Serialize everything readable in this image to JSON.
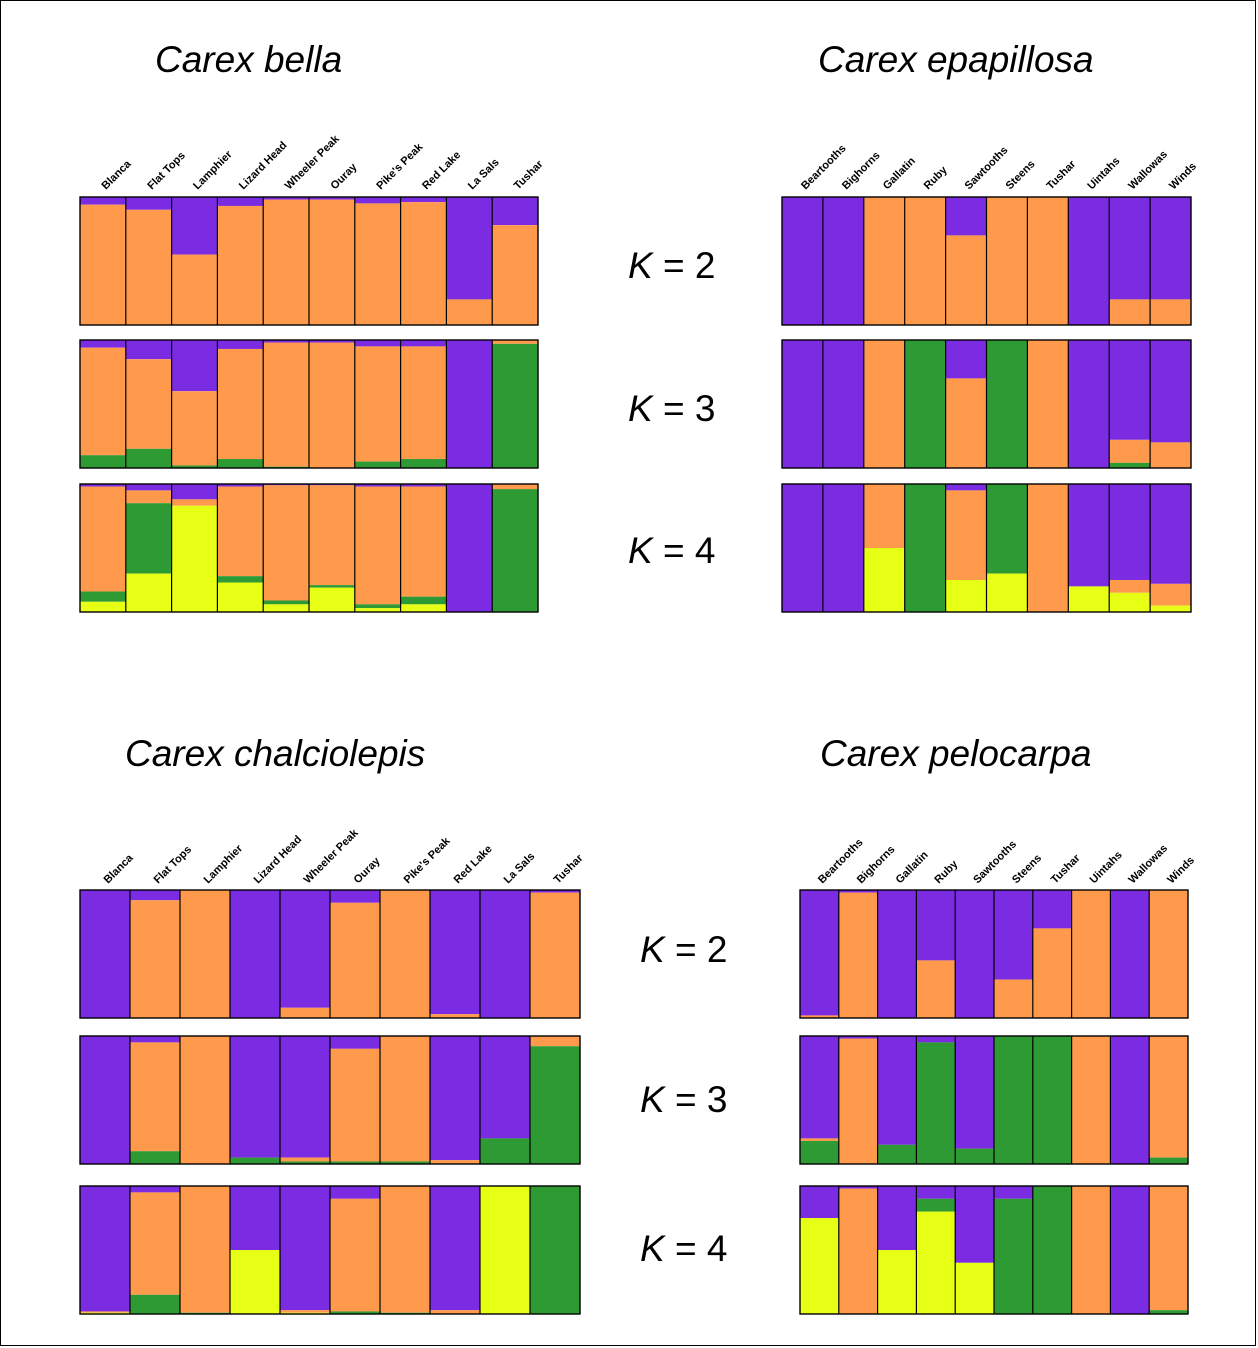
{
  "colors": {
    "purple": "#7B2BE2",
    "orange": "#FF9A4D",
    "green": "#2E9A33",
    "yellow": "#E6FF14",
    "outline": "#000000"
  },
  "k_values": [
    "2",
    "3",
    "4"
  ],
  "chart_data": [
    {
      "type": "bar",
      "title": "Carex bella",
      "stacked": true,
      "populations": [
        "Blanca",
        "Flat Tops",
        "Lamphier",
        "Lizard Head",
        "Wheeler Peak",
        "Ouray",
        "Pike's Peak",
        "Red Lake",
        "La Sals",
        "Tushar"
      ],
      "panels": [
        {
          "k": "K = 2",
          "series": [
            {
              "color": "purple",
              "values": [
                0.06,
                0.1,
                0.45,
                0.07,
                0.02,
                0.02,
                0.05,
                0.04,
                0.8,
                0.22
              ]
            },
            {
              "color": "orange",
              "values": [
                0.94,
                0.9,
                0.55,
                0.93,
                0.98,
                0.98,
                0.95,
                0.96,
                0.2,
                0.78
              ]
            }
          ]
        },
        {
          "k": "K = 3",
          "series": [
            {
              "color": "purple",
              "values": [
                0.06,
                0.15,
                0.4,
                0.07,
                0.02,
                0.02,
                0.05,
                0.05,
                1.0,
                0.0
              ]
            },
            {
              "color": "orange",
              "values": [
                0.84,
                0.7,
                0.58,
                0.86,
                0.97,
                0.98,
                0.9,
                0.88,
                0.0,
                0.03
              ]
            },
            {
              "color": "green",
              "values": [
                0.1,
                0.15,
                0.02,
                0.07,
                0.01,
                0.0,
                0.05,
                0.07,
                0.0,
                0.97
              ]
            }
          ]
        },
        {
          "k": "K = 4",
          "series": [
            {
              "color": "purple",
              "values": [
                0.02,
                0.05,
                0.12,
                0.02,
                0.01,
                0.01,
                0.02,
                0.02,
                1.0,
                0.0
              ]
            },
            {
              "color": "orange",
              "values": [
                0.82,
                0.1,
                0.05,
                0.7,
                0.9,
                0.78,
                0.92,
                0.86,
                0.0,
                0.04
              ]
            },
            {
              "color": "green",
              "values": [
                0.08,
                0.55,
                0.0,
                0.05,
                0.03,
                0.02,
                0.03,
                0.06,
                0.0,
                0.96
              ]
            },
            {
              "color": "yellow",
              "values": [
                0.08,
                0.3,
                0.83,
                0.23,
                0.06,
                0.19,
                0.03,
                0.06,
                0.0,
                0.0
              ]
            }
          ]
        }
      ]
    },
    {
      "type": "bar",
      "title": "Carex epapillosa",
      "stacked": true,
      "populations": [
        "Beartooths",
        "Bighorns",
        "Gallatin",
        "Ruby",
        "Sawtooths",
        "Steens",
        "Tushar",
        "Uintahs",
        "Wallowas",
        "Winds"
      ],
      "panels": [
        {
          "k": "K = 2",
          "series": [
            {
              "color": "purple",
              "values": [
                1.0,
                1.0,
                0.0,
                0.0,
                0.3,
                0.0,
                0.0,
                1.0,
                0.8,
                0.8
              ]
            },
            {
              "color": "orange",
              "values": [
                0.0,
                0.0,
                1.0,
                1.0,
                0.7,
                1.0,
                1.0,
                0.0,
                0.2,
                0.2
              ]
            }
          ]
        },
        {
          "k": "K = 3",
          "series": [
            {
              "color": "purple",
              "values": [
                1.0,
                1.0,
                0.0,
                0.0,
                0.3,
                0.0,
                0.0,
                1.0,
                0.78,
                0.8
              ]
            },
            {
              "color": "orange",
              "values": [
                0.0,
                0.0,
                1.0,
                0.0,
                0.7,
                0.0,
                1.0,
                0.0,
                0.18,
                0.2
              ]
            },
            {
              "color": "green",
              "values": [
                0.0,
                0.0,
                0.0,
                1.0,
                0.0,
                1.0,
                0.0,
                0.0,
                0.04,
                0.0
              ]
            }
          ]
        },
        {
          "k": "K = 4",
          "series": [
            {
              "color": "purple",
              "values": [
                1.0,
                1.0,
                0.0,
                0.0,
                0.05,
                0.0,
                0.0,
                0.8,
                0.75,
                0.78
              ]
            },
            {
              "color": "orange",
              "values": [
                0.0,
                0.0,
                0.5,
                0.0,
                0.7,
                0.0,
                1.0,
                0.0,
                0.1,
                0.17
              ]
            },
            {
              "color": "green",
              "values": [
                0.0,
                0.0,
                0.0,
                1.0,
                0.0,
                0.7,
                0.0,
                0.0,
                0.0,
                0.0
              ]
            },
            {
              "color": "yellow",
              "values": [
                0.0,
                0.0,
                0.5,
                0.0,
                0.25,
                0.3,
                0.0,
                0.2,
                0.15,
                0.05
              ]
            }
          ]
        }
      ]
    },
    {
      "type": "bar",
      "title": "Carex chalciolepis",
      "stacked": true,
      "populations": [
        "Blanca",
        "Flat Tops",
        "Lamphier",
        "Lizard Head",
        "Wheeler Peak",
        "Ouray",
        "Pike's Peak",
        "Red Lake",
        "La Sals",
        "Tushar"
      ],
      "panels": [
        {
          "k": "K = 2",
          "series": [
            {
              "color": "purple",
              "values": [
                1.0,
                0.08,
                0.0,
                1.0,
                0.92,
                0.1,
                0.0,
                0.97,
                1.0,
                0.02
              ]
            },
            {
              "color": "orange",
              "values": [
                0.0,
                0.92,
                1.0,
                0.0,
                0.08,
                0.9,
                1.0,
                0.03,
                0.0,
                0.98
              ]
            }
          ]
        },
        {
          "k": "K = 3",
          "series": [
            {
              "color": "purple",
              "values": [
                1.0,
                0.05,
                0.0,
                0.95,
                0.95,
                0.1,
                0.0,
                0.97,
                0.8,
                0.0
              ]
            },
            {
              "color": "orange",
              "values": [
                0.0,
                0.85,
                1.0,
                0.0,
                0.03,
                0.88,
                0.98,
                0.03,
                0.0,
                0.08
              ]
            },
            {
              "color": "green",
              "values": [
                0.0,
                0.1,
                0.0,
                0.05,
                0.02,
                0.02,
                0.02,
                0.0,
                0.2,
                0.92
              ]
            }
          ]
        },
        {
          "k": "K = 4",
          "series": [
            {
              "color": "purple",
              "values": [
                0.98,
                0.05,
                0.0,
                0.5,
                0.97,
                0.1,
                0.0,
                0.97,
                0.0,
                0.0
              ]
            },
            {
              "color": "orange",
              "values": [
                0.01,
                0.8,
                0.99,
                0.0,
                0.02,
                0.88,
                0.99,
                0.03,
                0.0,
                0.0
              ]
            },
            {
              "color": "green",
              "values": [
                0.0,
                0.15,
                0.01,
                0.0,
                0.0,
                0.02,
                0.01,
                0.0,
                0.0,
                1.0
              ]
            },
            {
              "color": "yellow",
              "values": [
                0.01,
                0.0,
                0.0,
                0.5,
                0.01,
                0.0,
                0.0,
                0.0,
                1.0,
                0.0
              ]
            }
          ]
        }
      ]
    },
    {
      "type": "bar",
      "title": "Carex pelocarpa",
      "stacked": true,
      "populations": [
        "Beartooths",
        "Bighorns",
        "Gallatin",
        "Ruby",
        "Sawtooths",
        "Steens",
        "Tushar",
        "Uintahs",
        "Wallowas",
        "Winds"
      ],
      "panels": [
        {
          "k": "K = 2",
          "series": [
            {
              "color": "purple",
              "values": [
                0.98,
                0.02,
                1.0,
                0.55,
                1.0,
                0.7,
                0.3,
                0.0,
                1.0,
                0.0
              ]
            },
            {
              "color": "orange",
              "values": [
                0.02,
                0.98,
                0.0,
                0.45,
                0.0,
                0.3,
                0.7,
                1.0,
                0.0,
                1.0
              ]
            }
          ]
        },
        {
          "k": "K = 3",
          "series": [
            {
              "color": "purple",
              "values": [
                0.8,
                0.02,
                0.85,
                0.05,
                0.88,
                0.0,
                0.0,
                0.0,
                1.0,
                0.0
              ]
            },
            {
              "color": "orange",
              "values": [
                0.02,
                0.98,
                0.0,
                0.0,
                0.0,
                0.0,
                0.0,
                1.0,
                0.0,
                0.95
              ]
            },
            {
              "color": "green",
              "values": [
                0.18,
                0.0,
                0.15,
                0.95,
                0.12,
                1.0,
                1.0,
                0.0,
                0.0,
                0.05
              ]
            }
          ]
        },
        {
          "k": "K = 4",
          "series": [
            {
              "color": "purple",
              "values": [
                0.25,
                0.02,
                0.5,
                0.1,
                0.6,
                0.1,
                0.0,
                0.0,
                1.0,
                0.0
              ]
            },
            {
              "color": "orange",
              "values": [
                0.0,
                0.98,
                0.0,
                0.0,
                0.0,
                0.0,
                0.0,
                1.0,
                0.0,
                0.97
              ]
            },
            {
              "color": "green",
              "values": [
                0.0,
                0.0,
                0.0,
                0.1,
                0.0,
                0.9,
                1.0,
                0.0,
                0.0,
                0.03
              ]
            },
            {
              "color": "yellow",
              "values": [
                0.75,
                0.0,
                0.5,
                0.8,
                0.4,
                0.0,
                0.0,
                0.0,
                0.0,
                0.0
              ]
            }
          ]
        }
      ]
    }
  ]
}
